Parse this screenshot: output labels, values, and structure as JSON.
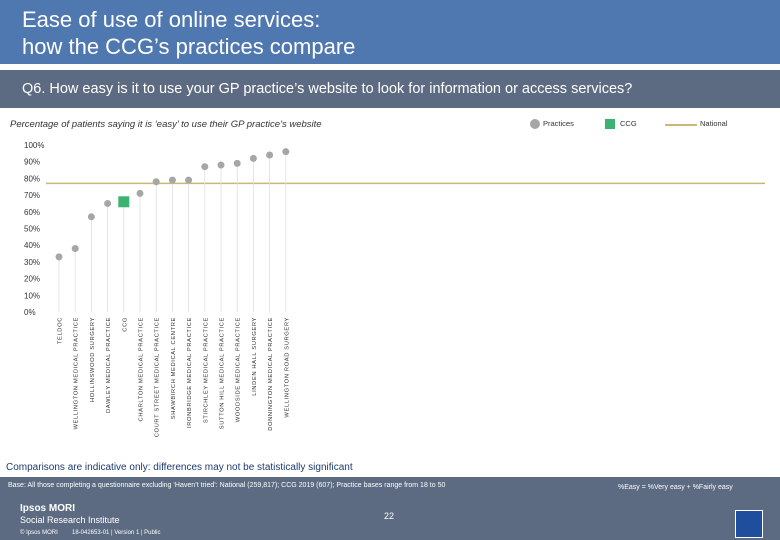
{
  "header": {
    "title_line1": "Ease of use of online services:",
    "title_line2": "how the CCG’s practices compare",
    "question": "Q6. How easy is it to use your GP practice’s website to look for information or access services?"
  },
  "legend": {
    "practices": "Practices",
    "ccg": "CCG",
    "national": "National"
  },
  "colors": {
    "title_band": "#5078b0",
    "question_band": "#5d6b82",
    "practice_marker": "#a6a6a6",
    "ccg_marker": "#3cb371",
    "national_line": "#c8b779"
  },
  "chart_data": {
    "type": "scatter",
    "subtitle": "Percentage of patients saying it is ‘easy’ to use their GP practice’s website",
    "categories": [
      "TELDOC",
      "WELLINGTON MEDICAL PRACTICE",
      "HOLLINSWOOD SURGERY",
      "DAWLEY MEDICAL PRACTICE",
      "CCG",
      "CHARLTON MEDICAL PRACTICE",
      "COURT STREET MEDICAL PRACTICE",
      "SHAWBIRCH MEDICAL CENTRE",
      "IRONBRIDGE MEDICAL PRACTICE",
      "STIRCHLEY MEDICAL PRACTICE",
      "SUTTON HILL MEDICAL PRACTICE",
      "WOODSIDE MEDICAL PRACTICE",
      "LINDEN HALL SURGERY",
      "DONNINGTON MEDICAL PRACTICE",
      "WELLINGTON ROAD SURGERY"
    ],
    "values": [
      33,
      38,
      57,
      65,
      66,
      71,
      78,
      79,
      79,
      87,
      88,
      89,
      92,
      94,
      96
    ],
    "ccg_index": 4,
    "national_value": 77,
    "yticks": [
      "0%",
      "10%",
      "20%",
      "30%",
      "40%",
      "50%",
      "60%",
      "70%",
      "80%",
      "90%",
      "100%"
    ],
    "ylim": [
      0,
      100
    ],
    "grid": false,
    "legend_position": "top-right"
  },
  "footer": {
    "note": "Comparisons are indicative only: differences may not be statistically significant",
    "base": "Base: All those completing a questionnaire excluding ‘Haven’t tried’: National (259,817); CCG 2019 (607); Practice bases range from 18 to 50",
    "easy_definition": "%Easy = %Very easy + %Fairly easy",
    "logo_line1": "Ipsos MORI",
    "logo_line2": "Social Research Institute",
    "page_number": "22",
    "copyright": "© Ipsos MORI",
    "version": "18-042653-01 | Version 1 | Public"
  }
}
